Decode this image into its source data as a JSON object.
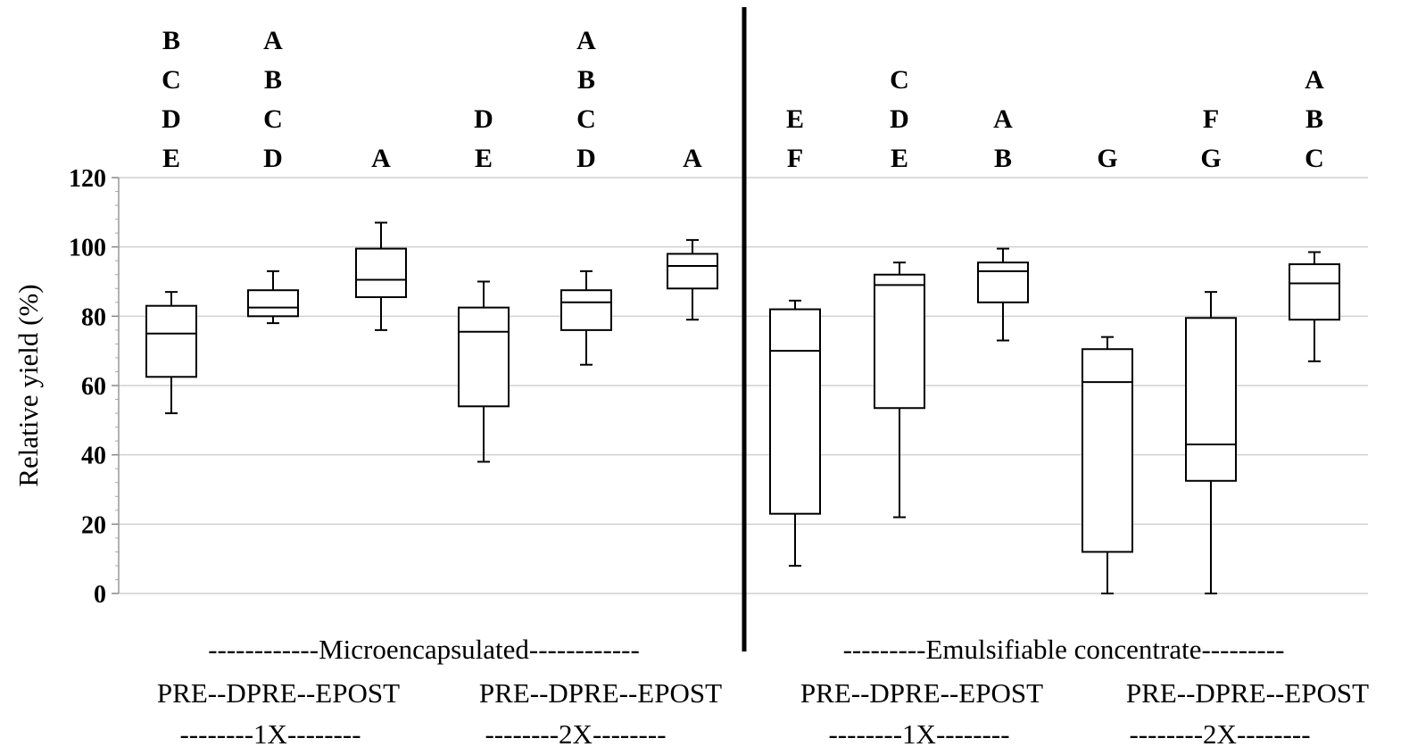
{
  "chart_data": {
    "type": "box",
    "ylabel": "Relative yield (%)",
    "ylim": [
      0,
      120
    ],
    "yticks": [
      "0",
      "20",
      "40",
      "60",
      "80",
      "100",
      "120"
    ],
    "grid": true,
    "boxes": [
      {
        "group": "Microencapsulated",
        "rate": "1X",
        "timing": "PRE",
        "min": 52,
        "q1": 62.5,
        "median": 75,
        "q3": 83,
        "max": 87,
        "letters": [
          "B",
          "C",
          "D",
          "E"
        ]
      },
      {
        "group": "Microencapsulated",
        "rate": "1X",
        "timing": "DPRE",
        "min": 78,
        "q1": 80,
        "median": 82.5,
        "q3": 87.5,
        "max": 93,
        "letters": [
          "A",
          "B",
          "C",
          "D"
        ]
      },
      {
        "group": "Microencapsulated",
        "rate": "1X",
        "timing": "EPOST",
        "min": 76,
        "q1": 85.5,
        "median": 90.5,
        "q3": 99.5,
        "max": 107,
        "letters": [
          "A"
        ]
      },
      {
        "group": "Microencapsulated",
        "rate": "2X",
        "timing": "PRE",
        "min": 38,
        "q1": 54,
        "median": 75.5,
        "q3": 82.5,
        "max": 90,
        "letters": [
          "D",
          "E"
        ]
      },
      {
        "group": "Microencapsulated",
        "rate": "2X",
        "timing": "DPRE",
        "min": 66,
        "q1": 76,
        "median": 84,
        "q3": 87.5,
        "max": 93,
        "letters": [
          "A",
          "B",
          "C",
          "D"
        ]
      },
      {
        "group": "Microencapsulated",
        "rate": "2X",
        "timing": "EPOST",
        "min": 79,
        "q1": 88,
        "median": 94.5,
        "q3": 98,
        "max": 102,
        "letters": [
          "A"
        ]
      },
      {
        "group": "Emulsifiable concentrate",
        "rate": "1X",
        "timing": "PRE",
        "min": 8,
        "q1": 23,
        "median": 70,
        "q3": 82,
        "max": 84.5,
        "letters": [
          "E",
          "F"
        ]
      },
      {
        "group": "Emulsifiable concentrate",
        "rate": "1X",
        "timing": "DPRE",
        "min": 22,
        "q1": 53.5,
        "median": 89,
        "q3": 92,
        "max": 95.5,
        "letters": [
          "C",
          "D",
          "E"
        ]
      },
      {
        "group": "Emulsifiable concentrate",
        "rate": "1X",
        "timing": "EPOST",
        "min": 73,
        "q1": 84,
        "median": 93,
        "q3": 95.5,
        "max": 99.5,
        "letters": [
          "A",
          "B"
        ]
      },
      {
        "group": "Emulsifiable concentrate",
        "rate": "2X",
        "timing": "PRE",
        "min": 0,
        "q1": 12,
        "median": 61,
        "q3": 70.5,
        "max": 74,
        "letters": [
          "G"
        ]
      },
      {
        "group": "Emulsifiable concentrate",
        "rate": "2X",
        "timing": "DPRE",
        "min": 0,
        "q1": 32.5,
        "median": 43,
        "q3": 79.5,
        "max": 87,
        "letters": [
          "F",
          "G"
        ]
      },
      {
        "group": "Emulsifiable concentrate",
        "rate": "2X",
        "timing": "EPOST",
        "min": 67,
        "q1": 79,
        "median": 89.5,
        "q3": 95,
        "max": 98.5,
        "letters": [
          "A",
          "B",
          "C"
        ]
      }
    ],
    "xlabels": {
      "group_labels": [
        "------------Microencapsulated------------",
        "---------Emulsifiable  concentrate---------"
      ],
      "timing_labels": [
        "PRE--DPRE--EPOST",
        "PRE--DPRE--EPOST",
        "PRE--DPRE--EPOST",
        "PRE--DPRE--EPOST"
      ],
      "rate_labels": [
        "--------1X--------",
        "--------2X--------",
        "--------1X--------",
        "--------2X--------"
      ]
    }
  }
}
